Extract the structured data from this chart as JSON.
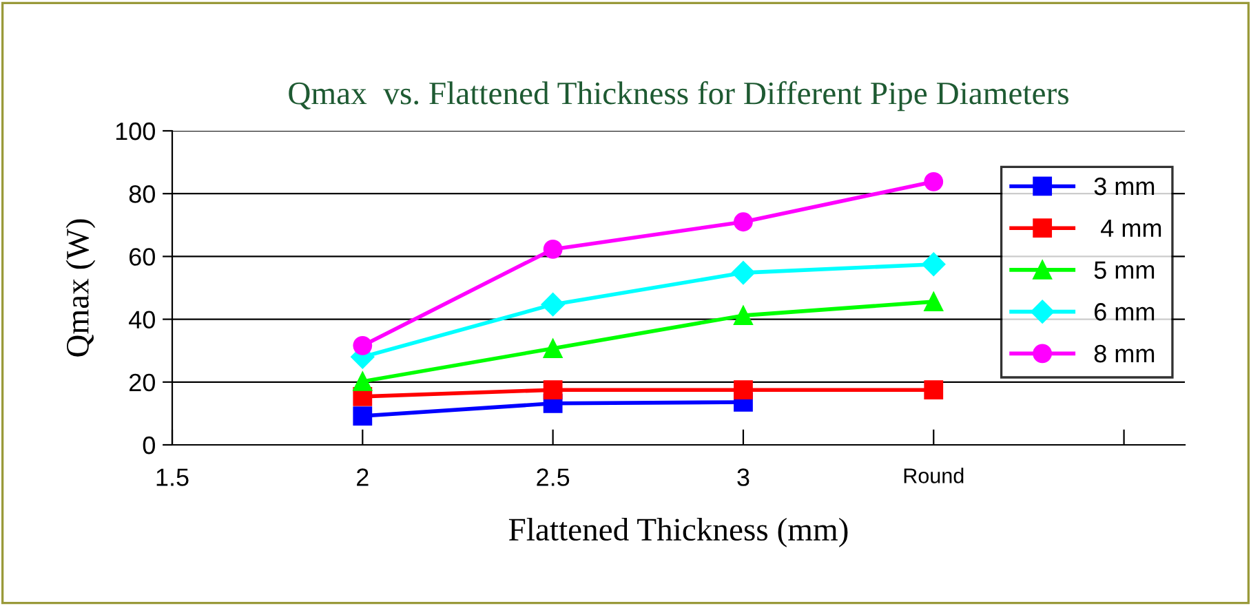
{
  "chart_data": {
    "type": "line",
    "title": "Qmax  vs. Flattened Thickness for Different Pipe Diameters",
    "xlabel": "Flattened Thickness (mm)",
    "ylabel": "Qmax (W)",
    "x": [
      2,
      2.5,
      3,
      3.5
    ],
    "xlim": [
      1.5,
      4.16
    ],
    "xticks": [
      1.5,
      2,
      2.5,
      3,
      {
        "value": 3.5,
        "label": "Round"
      },
      {
        "value": 4.0,
        "label": null
      }
    ],
    "ylim": [
      0,
      100
    ],
    "yticks": [
      0,
      20,
      40,
      60,
      80,
      100
    ],
    "grid": "y",
    "legend": "right",
    "line_style": "solid",
    "series": [
      {
        "name": "3 mm",
        "color": "#0000ff",
        "marker": "square",
        "values": [
          9.2,
          13.2,
          13.6,
          null
        ]
      },
      {
        "name": " 4 mm",
        "color": "#ff0000",
        "marker": "square",
        "values": [
          15.4,
          17.5,
          17.5,
          17.5
        ]
      },
      {
        "name": "5 mm",
        "color": "#00ff00",
        "marker": "triangle",
        "values": [
          20.2,
          30.7,
          41.2,
          45.6
        ]
      },
      {
        "name": "6 mm",
        "color": "#00ffff",
        "marker": "diamond",
        "values": [
          28,
          44.7,
          54.8,
          57.5
        ]
      },
      {
        "name": "8 mm",
        "color": "#ff00ff",
        "marker": "circle",
        "values": [
          31.6,
          62.3,
          71,
          83.8
        ]
      }
    ]
  }
}
